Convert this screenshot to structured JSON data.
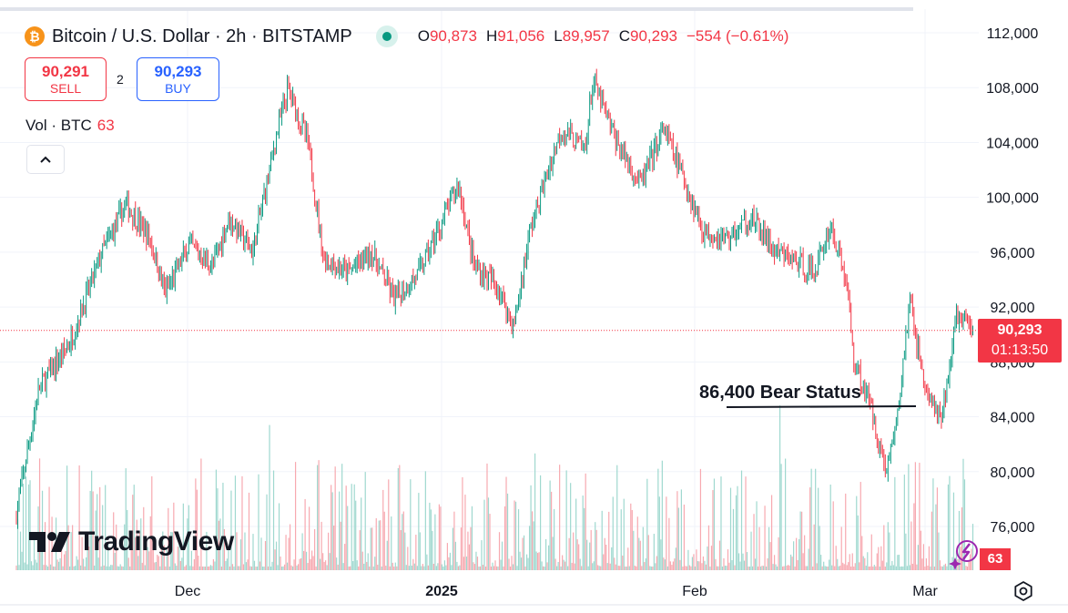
{
  "header": {
    "title": "Bitcoin / U.S. Dollar · 2h · BITSTAMP",
    "open_label": "O",
    "open_value": "90,873",
    "high_label": "H",
    "high_value": "91,056",
    "low_label": "L",
    "low_value": "89,957",
    "close_label": "C",
    "close_value": "90,293",
    "change": "−554 (−0.61%)",
    "icon": "bitcoin-icon"
  },
  "trade": {
    "sell_price": "90,291",
    "sell_label": "SELL",
    "spread": "2",
    "buy_price": "90,293",
    "buy_label": "BUY"
  },
  "volume_legend": {
    "label": "Vol · BTC",
    "value": "63"
  },
  "last_price": {
    "price": "90,293",
    "countdown": "01:13:50"
  },
  "volume_badge": "63",
  "annotation": {
    "text": "86,400 Bear Status",
    "price": 86400
  },
  "logo_text": "TradingView",
  "colors": {
    "up": "#089981",
    "down": "#f23645",
    "sell": "#f23645",
    "buy": "#2962ff"
  },
  "chart_data": {
    "type": "candlestick",
    "price_axis_ticks": [
      "112,000",
      "108,000",
      "104,000",
      "100,000",
      "96,000",
      "92,000",
      "88,000",
      "84,000",
      "80,000",
      "76,000"
    ],
    "time_axis_ticks": [
      "Dec",
      "2025",
      "Feb",
      "Mar"
    ],
    "ylim": [
      73800,
      112000
    ],
    "last_price": 90293,
    "approx_path": [
      [
        0,
        76500
      ],
      [
        0.03,
        86000
      ],
      [
        0.07,
        89500
      ],
      [
        0.11,
        96000
      ],
      [
        0.14,
        99500
      ],
      [
        0.17,
        97000
      ],
      [
        0.19,
        93000
      ],
      [
        0.22,
        96500
      ],
      [
        0.25,
        95000
      ],
      [
        0.27,
        98500
      ],
      [
        0.3,
        96000
      ],
      [
        0.33,
        104500
      ],
      [
        0.345,
        108000
      ],
      [
        0.37,
        104000
      ],
      [
        0.39,
        95500
      ],
      [
        0.42,
        94500
      ],
      [
        0.45,
        96000
      ],
      [
        0.48,
        92500
      ],
      [
        0.51,
        94500
      ],
      [
        0.53,
        97000
      ],
      [
        0.56,
        101000
      ],
      [
        0.58,
        95000
      ],
      [
        0.61,
        93500
      ],
      [
        0.63,
        90500
      ],
      [
        0.65,
        97500
      ],
      [
        0.69,
        105000
      ],
      [
        0.72,
        103500
      ],
      [
        0.73,
        108500
      ],
      [
        0.76,
        104000
      ],
      [
        0.79,
        101000
      ],
      [
        0.82,
        105000
      ],
      [
        0.84,
        102000
      ],
      [
        0.87,
        97500
      ],
      [
        0.9,
        97000
      ],
      [
        0.93,
        98500
      ],
      [
        0.96,
        96000
      ],
      [
        0.98,
        95500
      ],
      [
        1.01,
        94500
      ],
      [
        1.03,
        98000
      ],
      [
        1.05,
        94000
      ],
      [
        1.06,
        88000
      ],
      [
        1.08,
        85000
      ],
      [
        1.1,
        80000
      ],
      [
        1.115,
        84000
      ],
      [
        1.13,
        92500
      ],
      [
        1.15,
        86000
      ],
      [
        1.17,
        83500
      ],
      [
        1.19,
        91500
      ],
      [
        1.21,
        90300
      ]
    ]
  }
}
